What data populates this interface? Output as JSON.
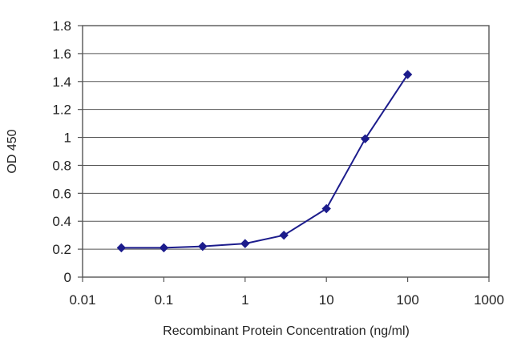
{
  "chart_data": {
    "type": "line",
    "title": "",
    "xlabel": "Recombinant Protein Concentration (ng/ml)",
    "ylabel": "OD 450",
    "xscale": "log",
    "xlim": [
      0.01,
      1000
    ],
    "ylim": [
      0,
      1.8
    ],
    "x_ticks": [
      0.01,
      0.1,
      1,
      10,
      100,
      1000
    ],
    "x_tick_labels": [
      "0.01",
      "0.1",
      "1",
      "10",
      "100",
      "1000"
    ],
    "y_ticks": [
      0,
      0.2,
      0.4,
      0.6,
      0.8,
      1,
      1.2,
      1.4,
      1.6,
      1.8
    ],
    "y_tick_labels": [
      "0",
      "0.2",
      "0.4",
      "0.6",
      "0.8",
      "1",
      "1.2",
      "1.4",
      "1.6",
      "1.8"
    ],
    "grid": "horizontal",
    "legend": "none",
    "series": [
      {
        "color": "#1c1c8c",
        "marker": "diamond",
        "x": [
          0.03,
          0.1,
          0.3,
          1,
          3,
          10,
          30,
          100
        ],
        "y": [
          0.21,
          0.21,
          0.22,
          0.24,
          0.3,
          0.49,
          0.99,
          1.45
        ]
      }
    ]
  }
}
